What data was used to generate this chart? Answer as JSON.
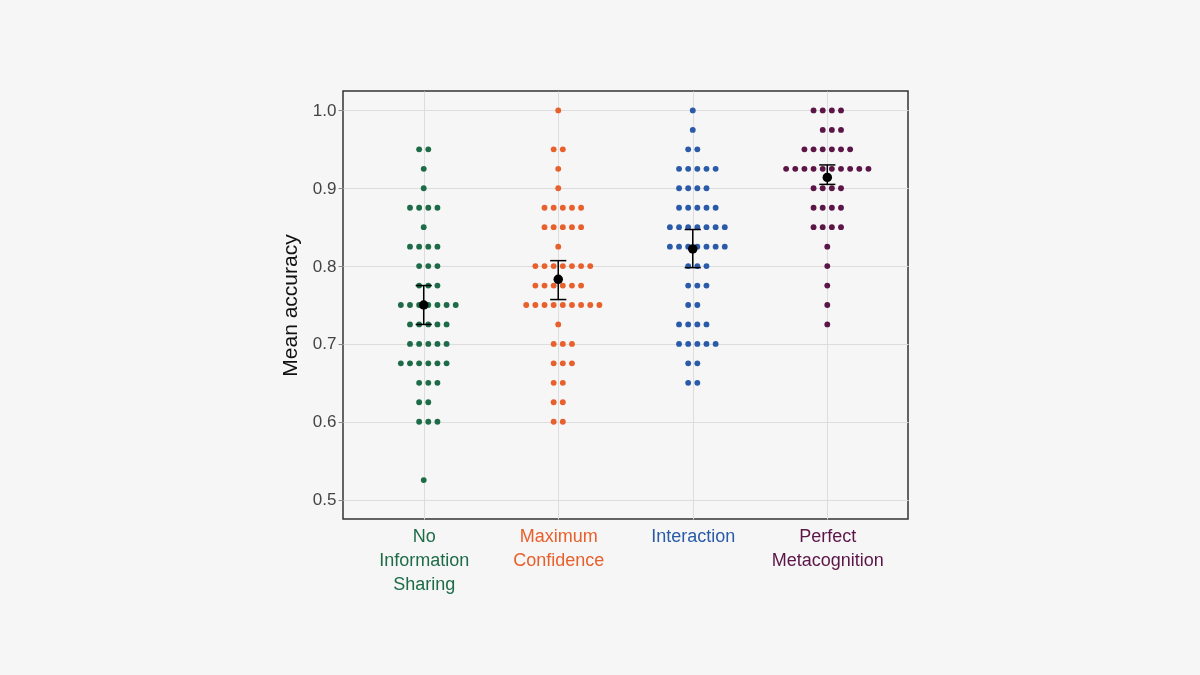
{
  "chart_data": {
    "type": "scatter",
    "ylabel": "Mean accuracy",
    "categories": [
      "No Information Sharing",
      "Maximum Confidence",
      "Interaction",
      "Perfect Metacognition"
    ],
    "ylim": [
      0.475,
      1.025
    ],
    "yticks": [
      0.5,
      0.6,
      0.7,
      0.8,
      0.9,
      {
        "value": 1.0,
        "label": "1.0"
      }
    ],
    "grid": true,
    "marker": "circle",
    "series": [
      {
        "color": "#1e6b48",
        "x": [
          "No Information Sharing",
          "No Information Sharing",
          "No Information Sharing",
          "No Information Sharing",
          "No Information Sharing",
          "No Information Sharing",
          "No Information Sharing",
          "No Information Sharing",
          "No Information Sharing",
          "No Information Sharing",
          "No Information Sharing",
          "No Information Sharing",
          "No Information Sharing",
          "No Information Sharing",
          "No Information Sharing",
          "No Information Sharing",
          "No Information Sharing",
          "No Information Sharing",
          "No Information Sharing",
          "No Information Sharing",
          "No Information Sharing",
          "No Information Sharing",
          "No Information Sharing",
          "No Information Sharing",
          "No Information Sharing",
          "No Information Sharing",
          "No Information Sharing",
          "No Information Sharing",
          "No Information Sharing",
          "No Information Sharing",
          "No Information Sharing",
          "No Information Sharing",
          "No Information Sharing",
          "No Information Sharing",
          "No Information Sharing",
          "No Information Sharing",
          "No Information Sharing",
          "No Information Sharing",
          "No Information Sharing",
          "No Information Sharing",
          "No Information Sharing",
          "No Information Sharing",
          "No Information Sharing",
          "No Information Sharing",
          "No Information Sharing",
          "No Information Sharing",
          "No Information Sharing",
          "No Information Sharing",
          "No Information Sharing",
          "No Information Sharing",
          "No Information Sharing"
        ],
        "values": [
          0.95,
          0.95,
          0.925,
          0.9,
          0.875,
          0.875,
          0.875,
          0.875,
          0.85,
          0.825,
          0.825,
          0.825,
          0.825,
          0.8,
          0.8,
          0.8,
          0.775,
          0.775,
          0.775,
          0.75,
          0.75,
          0.75,
          0.75,
          0.75,
          0.75,
          0.75,
          0.725,
          0.725,
          0.725,
          0.725,
          0.725,
          0.7,
          0.7,
          0.7,
          0.7,
          0.7,
          0.675,
          0.675,
          0.675,
          0.675,
          0.675,
          0.675,
          0.65,
          0.65,
          0.65,
          0.625,
          0.625,
          0.6,
          0.6,
          0.6,
          0.525
        ]
      },
      {
        "color": "#e8602c",
        "x": [
          "Maximum Confidence",
          "Maximum Confidence",
          "Maximum Confidence",
          "Maximum Confidence",
          "Maximum Confidence",
          "Maximum Confidence",
          "Maximum Confidence",
          "Maximum Confidence",
          "Maximum Confidence",
          "Maximum Confidence",
          "Maximum Confidence",
          "Maximum Confidence",
          "Maximum Confidence",
          "Maximum Confidence",
          "Maximum Confidence",
          "Maximum Confidence",
          "Maximum Confidence",
          "Maximum Confidence",
          "Maximum Confidence",
          "Maximum Confidence",
          "Maximum Confidence",
          "Maximum Confidence",
          "Maximum Confidence",
          "Maximum Confidence",
          "Maximum Confidence",
          "Maximum Confidence",
          "Maximum Confidence",
          "Maximum Confidence",
          "Maximum Confidence",
          "Maximum Confidence",
          "Maximum Confidence",
          "Maximum Confidence",
          "Maximum Confidence",
          "Maximum Confidence",
          "Maximum Confidence",
          "Maximum Confidence",
          "Maximum Confidence",
          "Maximum Confidence",
          "Maximum Confidence",
          "Maximum Confidence",
          "Maximum Confidence",
          "Maximum Confidence",
          "Maximum Confidence",
          "Maximum Confidence",
          "Maximum Confidence",
          "Maximum Confidence",
          "Maximum Confidence",
          "Maximum Confidence",
          "Maximum Confidence",
          "Maximum Confidence",
          "Maximum Confidence"
        ],
        "values": [
          1.0,
          0.95,
          0.95,
          0.925,
          0.9,
          0.875,
          0.875,
          0.875,
          0.875,
          0.875,
          0.85,
          0.85,
          0.85,
          0.85,
          0.85,
          0.825,
          0.8,
          0.8,
          0.8,
          0.8,
          0.8,
          0.8,
          0.8,
          0.775,
          0.775,
          0.775,
          0.775,
          0.775,
          0.775,
          0.75,
          0.75,
          0.75,
          0.75,
          0.75,
          0.75,
          0.75,
          0.75,
          0.75,
          0.725,
          0.7,
          0.7,
          0.7,
          0.675,
          0.675,
          0.675,
          0.65,
          0.65,
          0.625,
          0.625,
          0.6,
          0.6
        ]
      },
      {
        "color": "#2a5ba8",
        "x": [
          "Interaction",
          "Interaction",
          "Interaction",
          "Interaction",
          "Interaction",
          "Interaction",
          "Interaction",
          "Interaction",
          "Interaction",
          "Interaction",
          "Interaction",
          "Interaction",
          "Interaction",
          "Interaction",
          "Interaction",
          "Interaction",
          "Interaction",
          "Interaction",
          "Interaction",
          "Interaction",
          "Interaction",
          "Interaction",
          "Interaction",
          "Interaction",
          "Interaction",
          "Interaction",
          "Interaction",
          "Interaction",
          "Interaction",
          "Interaction",
          "Interaction",
          "Interaction",
          "Interaction",
          "Interaction",
          "Interaction",
          "Interaction",
          "Interaction",
          "Interaction",
          "Interaction",
          "Interaction",
          "Interaction",
          "Interaction",
          "Interaction",
          "Interaction",
          "Interaction",
          "Interaction",
          "Interaction",
          "Interaction",
          "Interaction",
          "Interaction",
          "Interaction",
          "Interaction",
          "Interaction"
        ],
        "values": [
          1.0,
          0.975,
          0.95,
          0.95,
          0.925,
          0.925,
          0.925,
          0.925,
          0.925,
          0.9,
          0.9,
          0.9,
          0.9,
          0.875,
          0.875,
          0.875,
          0.875,
          0.875,
          0.85,
          0.85,
          0.85,
          0.85,
          0.85,
          0.85,
          0.85,
          0.825,
          0.825,
          0.825,
          0.825,
          0.825,
          0.825,
          0.825,
          0.8,
          0.8,
          0.8,
          0.775,
          0.775,
          0.775,
          0.75,
          0.75,
          0.725,
          0.725,
          0.725,
          0.725,
          0.7,
          0.7,
          0.7,
          0.7,
          0.7,
          0.675,
          0.675,
          0.65,
          0.65
        ]
      },
      {
        "color": "#5c1547",
        "x": [
          "Perfect Metacognition",
          "Perfect Metacognition",
          "Perfect Metacognition",
          "Perfect Metacognition",
          "Perfect Metacognition",
          "Perfect Metacognition",
          "Perfect Metacognition",
          "Perfect Metacognition",
          "Perfect Metacognition",
          "Perfect Metacognition",
          "Perfect Metacognition",
          "Perfect Metacognition",
          "Perfect Metacognition",
          "Perfect Metacognition",
          "Perfect Metacognition",
          "Perfect Metacognition",
          "Perfect Metacognition",
          "Perfect Metacognition",
          "Perfect Metacognition",
          "Perfect Metacognition",
          "Perfect Metacognition",
          "Perfect Metacognition",
          "Perfect Metacognition",
          "Perfect Metacognition",
          "Perfect Metacognition",
          "Perfect Metacognition",
          "Perfect Metacognition",
          "Perfect Metacognition",
          "Perfect Metacognition",
          "Perfect Metacognition",
          "Perfect Metacognition",
          "Perfect Metacognition",
          "Perfect Metacognition",
          "Perfect Metacognition",
          "Perfect Metacognition",
          "Perfect Metacognition",
          "Perfect Metacognition",
          "Perfect Metacognition",
          "Perfect Metacognition",
          "Perfect Metacognition"
        ],
        "values": [
          1.0,
          1.0,
          1.0,
          1.0,
          0.975,
          0.975,
          0.975,
          0.95,
          0.95,
          0.95,
          0.95,
          0.95,
          0.95,
          0.925,
          0.925,
          0.925,
          0.925,
          0.925,
          0.925,
          0.925,
          0.925,
          0.925,
          0.925,
          0.9,
          0.9,
          0.9,
          0.9,
          0.875,
          0.875,
          0.875,
          0.875,
          0.85,
          0.85,
          0.85,
          0.85,
          0.825,
          0.8,
          0.775,
          0.75,
          0.725
        ]
      },
      {
        "color": "#000000",
        "x": [
          "No Information Sharing",
          "Maximum Confidence",
          "Interaction",
          "Perfect Metacognition"
        ],
        "values": [
          0.75,
          0.783,
          0.822,
          0.914
        ],
        "errors": [
          [
            0.725,
            0.775
          ],
          [
            0.757,
            0.807
          ],
          [
            0.798,
            0.847
          ],
          [
            0.905,
            0.93
          ]
        ]
      }
    ]
  }
}
